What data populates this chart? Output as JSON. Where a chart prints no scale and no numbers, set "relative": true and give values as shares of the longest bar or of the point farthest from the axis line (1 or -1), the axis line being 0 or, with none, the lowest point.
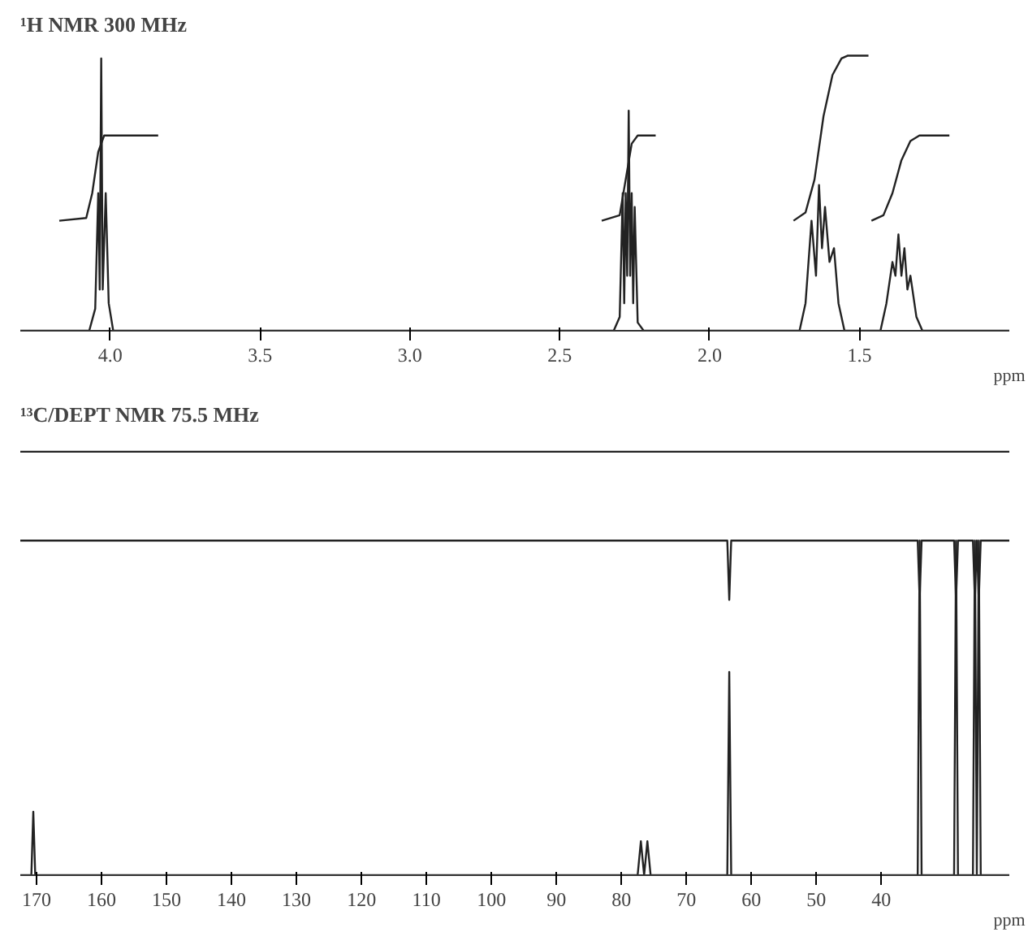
{
  "chart_data": [
    {
      "type": "line",
      "title": "¹H NMR 300 MHz",
      "xlabel": "ppm",
      "relative": true,
      "xlim": [
        4.3,
        1.0
      ],
      "xticks": [
        {
          "value": 4.0,
          "label": "4.0"
        },
        {
          "value": 3.5,
          "label": "3.5"
        },
        {
          "value": 3.0,
          "label": "3.0"
        },
        {
          "value": 2.5,
          "label": "2.5"
        },
        {
          "value": 2.0,
          "label": "2.0"
        },
        {
          "value": 1.5,
          "label": "1.5"
        }
      ],
      "grid": false,
      "tick_labels": "x",
      "series": [
        {
          "color": "#222222",
          "x": [
            4.3,
            4.07,
            4.05,
            4.04,
            4.035,
            4.03,
            4.025,
            4.015,
            4.005,
            3.99,
            2.32,
            2.3,
            2.29,
            2.285,
            2.28,
            2.275,
            2.27,
            2.265,
            2.26,
            2.255,
            2.25,
            2.24,
            2.22,
            1.7,
            1.68,
            1.66,
            1.645,
            1.635,
            1.625,
            1.615,
            1.6,
            1.585,
            1.57,
            1.55,
            1.43,
            1.41,
            1.39,
            1.38,
            1.37,
            1.36,
            1.35,
            1.34,
            1.33,
            1.31,
            1.29,
            1.0
          ],
          "values": [
            0,
            0,
            0.08,
            0.5,
            0.15,
            0.99,
            0.15,
            0.5,
            0.1,
            0,
            0,
            0.05,
            0.5,
            0.1,
            0.5,
            0.2,
            0.8,
            0.2,
            0.5,
            0.1,
            0.45,
            0.03,
            0,
            0,
            0.1,
            0.4,
            0.2,
            0.53,
            0.3,
            0.45,
            0.25,
            0.3,
            0.1,
            0,
            0,
            0.1,
            0.25,
            0.2,
            0.35,
            0.2,
            0.3,
            0.15,
            0.2,
            0.05,
            0,
            0
          ]
        },
        {
          "color": "#222222",
          "x": [
            4.17,
            4.08,
            4.06,
            4.04,
            4.02,
            3.84
          ],
          "values": [
            0.4,
            0.41,
            0.5,
            0.65,
            0.71,
            0.71
          ]
        },
        {
          "color": "#222222",
          "x": [
            2.36,
            2.3,
            2.28,
            2.26,
            2.24,
            2.18
          ],
          "values": [
            0.4,
            0.42,
            0.55,
            0.68,
            0.71,
            0.71
          ]
        },
        {
          "color": "#222222",
          "x": [
            1.72,
            1.68,
            1.65,
            1.62,
            1.59,
            1.56,
            1.54,
            1.47
          ],
          "values": [
            0.4,
            0.43,
            0.55,
            0.78,
            0.93,
            0.99,
            1.0,
            1.0
          ]
        },
        {
          "color": "#222222",
          "x": [
            1.46,
            1.42,
            1.39,
            1.36,
            1.33,
            1.3,
            1.2
          ],
          "values": [
            0.4,
            0.42,
            0.5,
            0.62,
            0.69,
            0.71,
            0.71
          ]
        }
      ]
    },
    {
      "type": "line",
      "title": "¹³C/DEPT NMR 75.5 MHz",
      "xlabel": "ppm",
      "relative": true,
      "xlim": [
        172.5,
        20.3
      ],
      "xticks": [
        170,
        160,
        150,
        140,
        130,
        120,
        110,
        100,
        90,
        80,
        70,
        60,
        50,
        40
      ],
      "grid": false,
      "tick_labels": "x",
      "series": [
        {
          "color": "#222222",
          "x": [
            172.5,
            170.8,
            170.5,
            170.2,
            77.5,
            77,
            76.5,
            76,
            75.5,
            63.7,
            63.4,
            63.1,
            34.4,
            34.1,
            33.8,
            28.8,
            28.5,
            28.2,
            25.9,
            25.6,
            25.3,
            25,
            24.7,
            20.3
          ],
          "values": [
            0,
            0,
            0.15,
            0,
            0,
            0.08,
            0,
            0.08,
            0,
            0,
            0.48,
            0,
            0,
            0.79,
            0,
            0,
            0.79,
            0,
            0,
            0.79,
            0,
            0.79,
            0,
            0
          ]
        },
        {
          "color": "#222222",
          "x": [
            172.5,
            63.7,
            63.4,
            63.1,
            34.4,
            34.1,
            33.8,
            28.8,
            28.5,
            28.2,
            25.9,
            25.6,
            25.3,
            25,
            24.7,
            20.3
          ],
          "values": [
            0.79,
            0.79,
            0.65,
            0.79,
            0.79,
            0.65,
            0.79,
            0.79,
            0.65,
            0.79,
            0.79,
            0.65,
            0.79,
            0.65,
            0.79,
            0.79
          ]
        },
        {
          "color": "#222222",
          "x": [
            172.5,
            20.3
          ],
          "values": [
            1.0,
            1.0
          ]
        }
      ]
    }
  ]
}
